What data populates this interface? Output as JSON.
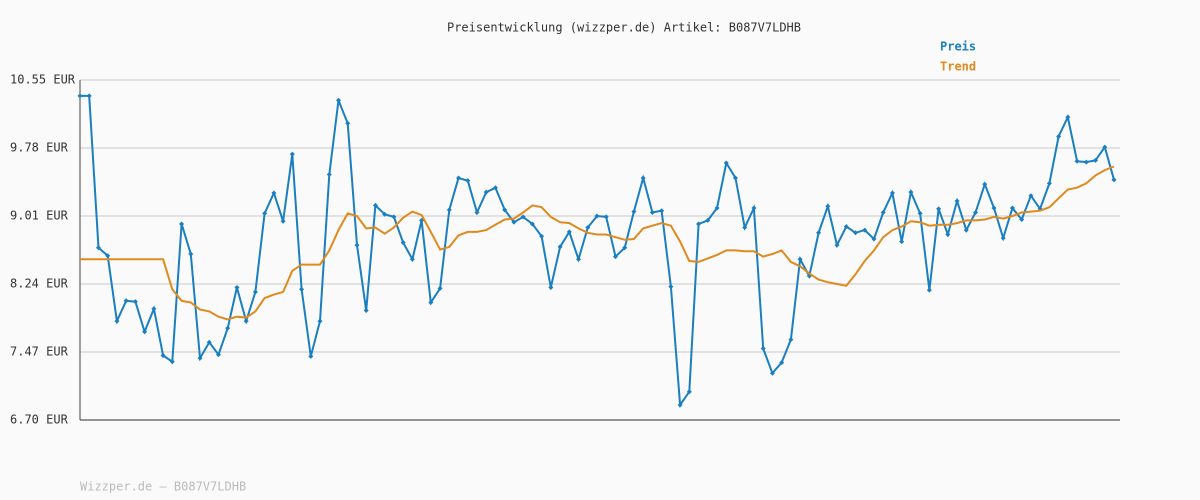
{
  "chart_data": {
    "type": "line",
    "title": "Preisentwicklung (wizzper.de) Artikel: B087V7LDHB",
    "footer": "Wizzper.de – B087V7LDHB",
    "categories": [
      null,
      null,
      null,
      null,
      null,
      null,
      null,
      null,
      null,
      null,
      null,
      null,
      null,
      null,
      null,
      null,
      null,
      null,
      null,
      null,
      null,
      null,
      null,
      null,
      null,
      null,
      null,
      null,
      null,
      null,
      null,
      null,
      null,
      null,
      null,
      null,
      null,
      null,
      null,
      null,
      null,
      null,
      null,
      null,
      null,
      null,
      null,
      null,
      null,
      null,
      null,
      null,
      null,
      null,
      null,
      null,
      null,
      null,
      null,
      null,
      null,
      null,
      null,
      null,
      null,
      null,
      null,
      null,
      null,
      null,
      null,
      null,
      null,
      null,
      null,
      null,
      null,
      null,
      null,
      null,
      null,
      null,
      null,
      null,
      null,
      null,
      null,
      null,
      null,
      null,
      null,
      null,
      null,
      null,
      null,
      null,
      null,
      null,
      null,
      null,
      null,
      null,
      null,
      null,
      null,
      null,
      null,
      null,
      null,
      null,
      null,
      null,
      null
    ],
    "series": [
      {
        "name": "Preis",
        "color": "#1a7fc0",
        "markers": true,
        "values": [
          10.37,
          10.37,
          8.65,
          8.56,
          7.82,
          8.05,
          8.04,
          7.7,
          7.96,
          7.43,
          7.36,
          8.92,
          8.58,
          7.4,
          7.58,
          7.44,
          7.74,
          8.2,
          7.82,
          8.15,
          9.04,
          9.27,
          8.95,
          9.71,
          8.18,
          7.42,
          7.82,
          9.48,
          10.32,
          10.06,
          8.68,
          7.94,
          9.13,
          9.03,
          9.0,
          8.71,
          8.52,
          8.96,
          8.03,
          8.19,
          9.08,
          9.44,
          9.41,
          9.05,
          9.28,
          9.33,
          9.08,
          8.94,
          9.0,
          8.92,
          8.78,
          8.2,
          8.66,
          8.83,
          8.52,
          8.88,
          9.01,
          9.0,
          8.55,
          8.65,
          9.06,
          9.44,
          9.05,
          9.07,
          8.21,
          6.87,
          7.02,
          8.92,
          8.96,
          9.1,
          9.61,
          9.44,
          8.88,
          9.1,
          7.51,
          7.23,
          7.35,
          7.61,
          8.52,
          8.33,
          8.82,
          9.12,
          8.68,
          8.89,
          8.82,
          8.85,
          8.75,
          9.05,
          9.27,
          8.72,
          9.28,
          9.04,
          8.17,
          9.09,
          8.8,
          9.18,
          8.85,
          9.05,
          9.37,
          9.1,
          8.76,
          9.1,
          8.97,
          9.24,
          9.09,
          9.38,
          9.91,
          10.13,
          9.63,
          9.62,
          9.64,
          9.79,
          9.42
        ]
      },
      {
        "name": "Trend",
        "color": "#e08a1e",
        "markers": false,
        "values": [
          8.52,
          8.52,
          8.52,
          8.52,
          8.52,
          8.52,
          8.52,
          8.52,
          8.52,
          8.52,
          8.18,
          8.05,
          8.03,
          7.95,
          7.93,
          7.87,
          7.84,
          7.87,
          7.86,
          7.93,
          8.08,
          8.12,
          8.15,
          8.39,
          8.46,
          8.46,
          8.46,
          8.62,
          8.85,
          9.04,
          9.01,
          8.87,
          8.88,
          8.81,
          8.88,
          8.99,
          9.06,
          9.02,
          8.83,
          8.63,
          8.66,
          8.79,
          8.83,
          8.83,
          8.85,
          8.91,
          8.97,
          8.98,
          9.05,
          9.13,
          9.11,
          9.0,
          8.94,
          8.93,
          8.87,
          8.82,
          8.8,
          8.8,
          8.77,
          8.74,
          8.75,
          8.87,
          8.9,
          8.93,
          8.9,
          8.72,
          8.5,
          8.49,
          8.53,
          8.57,
          8.62,
          8.62,
          8.61,
          8.61,
          8.55,
          8.58,
          8.62,
          8.49,
          8.44,
          8.36,
          8.29,
          8.26,
          8.24,
          8.22,
          8.35,
          8.5,
          8.62,
          8.77,
          8.85,
          8.89,
          8.95,
          8.94,
          8.9,
          8.91,
          8.91,
          8.93,
          8.96,
          8.96,
          8.97,
          9.0,
          8.98,
          9.01,
          9.05,
          9.06,
          9.07,
          9.11,
          9.21,
          9.31,
          9.33,
          9.38,
          9.47,
          9.53,
          9.57
        ]
      }
    ],
    "ylim": [
      6.7,
      10.55
    ],
    "yticks": [
      {
        "value": 6.7,
        "label": "6.70 EUR"
      },
      {
        "value": 7.47,
        "label": "7.47 EUR"
      },
      {
        "value": 8.24,
        "label": "8.24 EUR"
      },
      {
        "value": 9.01,
        "label": "9.01 EUR"
      },
      {
        "value": 9.78,
        "label": "9.78 EUR"
      },
      {
        "value": 10.55,
        "label": "10.55 EUR"
      }
    ],
    "grid": true
  }
}
